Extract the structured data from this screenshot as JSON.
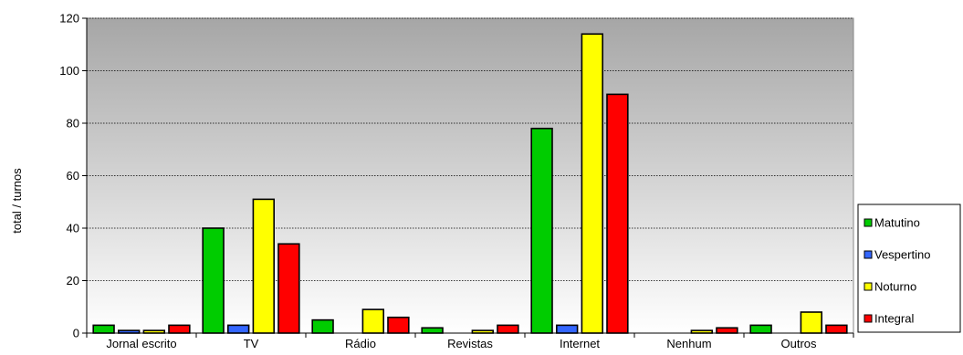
{
  "chart_data": {
    "type": "bar",
    "title": "",
    "xlabel": "",
    "ylabel": "total / turnos",
    "ylim": [
      0,
      120
    ],
    "yticks": [
      0,
      20,
      40,
      60,
      80,
      100,
      120
    ],
    "grid": true,
    "legend_position": "right",
    "categories": [
      "Jornal escrito",
      "TV",
      "Rádio",
      "Revistas",
      "Internet",
      "Nenhum",
      "Outros"
    ],
    "series": [
      {
        "name": "Matutino",
        "color": "#00cc00",
        "values": [
          3,
          40,
          5,
          2,
          78,
          0,
          3
        ]
      },
      {
        "name": "Vespertino",
        "color": "#3366ff",
        "values": [
          1,
          3,
          0,
          0,
          3,
          0,
          0
        ]
      },
      {
        "name": "Noturno",
        "color": "#ffff00",
        "values": [
          1,
          51,
          9,
          1,
          114,
          1,
          8
        ]
      },
      {
        "name": "Integral",
        "color": "#ff0000",
        "values": [
          3,
          34,
          6,
          3,
          91,
          2,
          3
        ]
      }
    ]
  }
}
